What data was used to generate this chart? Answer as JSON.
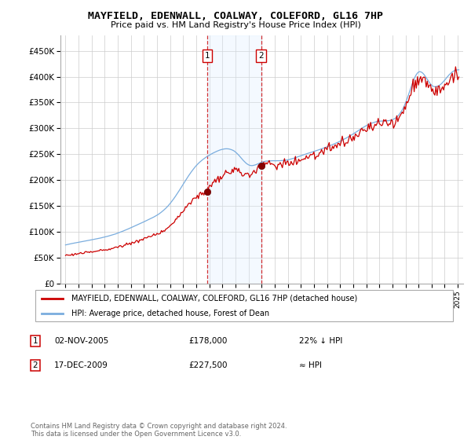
{
  "title": "MAYFIELD, EDENWALL, COALWAY, COLEFORD, GL16 7HP",
  "subtitle": "Price paid vs. HM Land Registry's House Price Index (HPI)",
  "legend_line1": "MAYFIELD, EDENWALL, COALWAY, COLEFORD, GL16 7HP (detached house)",
  "legend_line2": "HPI: Average price, detached house, Forest of Dean",
  "annotation1_date": "02-NOV-2005",
  "annotation1_price": "£178,000",
  "annotation1_hpi": "22% ↓ HPI",
  "annotation2_date": "17-DEC-2009",
  "annotation2_price": "£227,500",
  "annotation2_hpi": "≈ HPI",
  "copyright": "Contains HM Land Registry data © Crown copyright and database right 2024.\nThis data is licensed under the Open Government Licence v3.0.",
  "ylim": [
    0,
    480000
  ],
  "yticks": [
    0,
    50000,
    100000,
    150000,
    200000,
    250000,
    300000,
    350000,
    400000,
    450000
  ],
  "hpi_color": "#7aadde",
  "price_color": "#cc0000",
  "shade_color": "#ddeeff",
  "vline_color": "#cc0000",
  "marker1_x": 2005.84,
  "marker1_y": 178000,
  "marker2_x": 2009.96,
  "marker2_y": 227500,
  "shade_x1": 2005.84,
  "shade_x2": 2009.96,
  "xlim_left": 1994.6,
  "xlim_right": 2025.4
}
